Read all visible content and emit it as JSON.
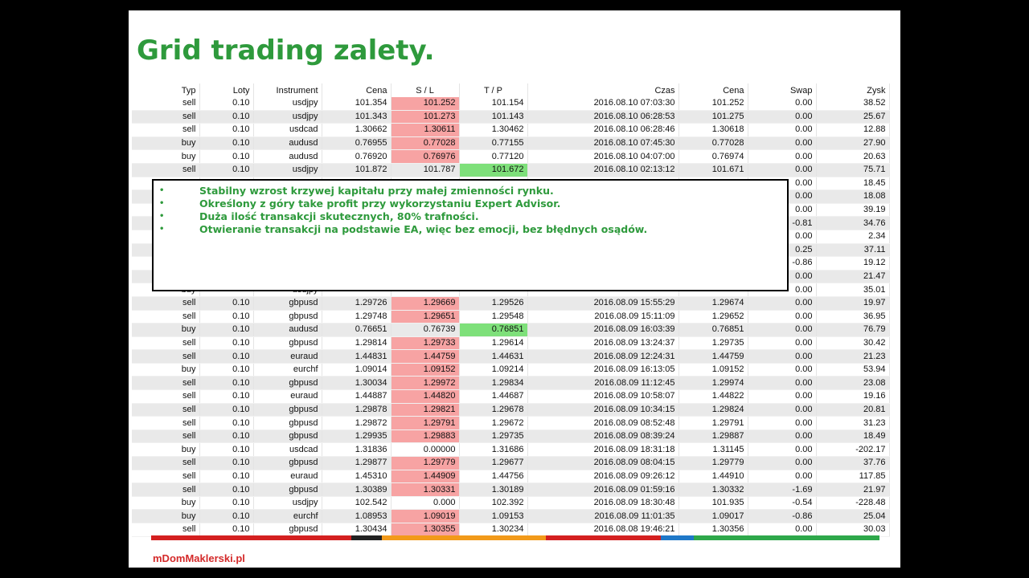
{
  "title": "Grid trading zalety.",
  "columns": [
    "Typ",
    "Loty",
    "Instrument",
    "Cena",
    "S / L",
    "T / P",
    "Czas",
    "Cena",
    "Swap",
    "Zysk"
  ],
  "rows": [
    {
      "cells": [
        "sell",
        "0.10",
        "usdjpy",
        "101.354",
        "101.252",
        "101.154",
        "2016.08.10 07:03:30",
        "101.252",
        "0.00",
        "38.52"
      ],
      "sl_highlight": true,
      "tp_highlight": false
    },
    {
      "cells": [
        "sell",
        "0.10",
        "usdjpy",
        "101.343",
        "101.273",
        "101.143",
        "2016.08.10 06:28:53",
        "101.275",
        "0.00",
        "25.67"
      ],
      "sl_highlight": true,
      "tp_highlight": false
    },
    {
      "cells": [
        "sell",
        "0.10",
        "usdcad",
        "1.30662",
        "1.30611",
        "1.30462",
        "2016.08.10 06:28:46",
        "1.30618",
        "0.00",
        "12.88"
      ],
      "sl_highlight": true,
      "tp_highlight": false
    },
    {
      "cells": [
        "buy",
        "0.10",
        "audusd",
        "0.76955",
        "0.77028",
        "0.77155",
        "2016.08.10 07:45:30",
        "0.77028",
        "0.00",
        "27.90"
      ],
      "sl_highlight": true,
      "tp_highlight": false
    },
    {
      "cells": [
        "buy",
        "0.10",
        "audusd",
        "0.76920",
        "0.76976",
        "0.77120",
        "2016.08.10 04:07:00",
        "0.76974",
        "0.00",
        "20.63"
      ],
      "sl_highlight": true,
      "tp_highlight": false
    },
    {
      "cells": [
        "sell",
        "0.10",
        "usdjpy",
        "101.872",
        "101.787",
        "101.672",
        "2016.08.10 02:13:12",
        "101.671",
        "0.00",
        "75.71"
      ],
      "sl_highlight": false,
      "tp_highlight": true
    },
    {
      "cells": [
        "",
        "",
        "",
        "",
        "",
        "",
        "",
        "",
        "0.00",
        "18.45"
      ],
      "sl_highlight": false,
      "tp_highlight": false
    },
    {
      "cells": [
        "",
        "",
        "",
        "",
        "",
        "",
        "",
        "",
        "0.00",
        "18.08"
      ],
      "sl_highlight": false,
      "tp_highlight": false
    },
    {
      "cells": [
        "",
        "",
        "",
        "",
        "",
        "",
        "",
        "",
        "0.00",
        "39.19"
      ],
      "sl_highlight": false,
      "tp_highlight": false
    },
    {
      "cells": [
        "",
        "",
        "",
        "",
        "",
        "",
        "",
        "",
        "-0.81",
        "34.76"
      ],
      "sl_highlight": false,
      "tp_highlight": false
    },
    {
      "cells": [
        "",
        "",
        "",
        "",
        "",
        "",
        "",
        "",
        "0.00",
        "2.34"
      ],
      "sl_highlight": false,
      "tp_highlight": false
    },
    {
      "cells": [
        "",
        "",
        "",
        "",
        "",
        "",
        "",
        "",
        "0.25",
        "37.11"
      ],
      "sl_highlight": false,
      "tp_highlight": false
    },
    {
      "cells": [
        "",
        "",
        "",
        "",
        "",
        "",
        "",
        "",
        "-0.86",
        "19.12"
      ],
      "sl_highlight": false,
      "tp_highlight": false
    },
    {
      "cells": [
        "",
        "",
        "",
        "",
        "",
        "",
        "",
        "",
        "0.00",
        "21.47"
      ],
      "sl_highlight": false,
      "tp_highlight": false
    },
    {
      "cells": [
        "buy",
        "",
        "usdjpy",
        "",
        "",
        "",
        "",
        "",
        "0.00",
        "35.01"
      ],
      "sl_highlight": false,
      "tp_highlight": false
    },
    {
      "cells": [
        "sell",
        "0.10",
        "gbpusd",
        "1.29726",
        "1.29669",
        "1.29526",
        "2016.08.09 15:55:29",
        "1.29674",
        "0.00",
        "19.97"
      ],
      "sl_highlight": true,
      "tp_highlight": false
    },
    {
      "cells": [
        "sell",
        "0.10",
        "gbpusd",
        "1.29748",
        "1.29651",
        "1.29548",
        "2016.08.09 15:11:09",
        "1.29652",
        "0.00",
        "36.95"
      ],
      "sl_highlight": true,
      "tp_highlight": false
    },
    {
      "cells": [
        "buy",
        "0.10",
        "audusd",
        "0.76651",
        "0.76739",
        "0.76851",
        "2016.08.09 16:03:39",
        "0.76851",
        "0.00",
        "76.79"
      ],
      "sl_highlight": false,
      "tp_highlight": true
    },
    {
      "cells": [
        "sell",
        "0.10",
        "gbpusd",
        "1.29814",
        "1.29733",
        "1.29614",
        "2016.08.09 13:24:37",
        "1.29735",
        "0.00",
        "30.42"
      ],
      "sl_highlight": true,
      "tp_highlight": false
    },
    {
      "cells": [
        "sell",
        "0.10",
        "euraud",
        "1.44831",
        "1.44759",
        "1.44631",
        "2016.08.09 12:24:31",
        "1.44759",
        "0.00",
        "21.23"
      ],
      "sl_highlight": true,
      "tp_highlight": false
    },
    {
      "cells": [
        "buy",
        "0.10",
        "eurchf",
        "1.09014",
        "1.09152",
        "1.09214",
        "2016.08.09 16:13:05",
        "1.09152",
        "0.00",
        "53.94"
      ],
      "sl_highlight": true,
      "tp_highlight": false
    },
    {
      "cells": [
        "sell",
        "0.10",
        "gbpusd",
        "1.30034",
        "1.29972",
        "1.29834",
        "2016.08.09 11:12:45",
        "1.29974",
        "0.00",
        "23.08"
      ],
      "sl_highlight": true,
      "tp_highlight": false
    },
    {
      "cells": [
        "sell",
        "0.10",
        "euraud",
        "1.44887",
        "1.44820",
        "1.44687",
        "2016.08.09 10:58:07",
        "1.44822",
        "0.00",
        "19.16"
      ],
      "sl_highlight": true,
      "tp_highlight": false
    },
    {
      "cells": [
        "sell",
        "0.10",
        "gbpusd",
        "1.29878",
        "1.29821",
        "1.29678",
        "2016.08.09 10:34:15",
        "1.29824",
        "0.00",
        "20.81"
      ],
      "sl_highlight": true,
      "tp_highlight": false
    },
    {
      "cells": [
        "sell",
        "0.10",
        "gbpusd",
        "1.29872",
        "1.29791",
        "1.29672",
        "2016.08.09 08:52:48",
        "1.29791",
        "0.00",
        "31.23"
      ],
      "sl_highlight": true,
      "tp_highlight": false
    },
    {
      "cells": [
        "sell",
        "0.10",
        "gbpusd",
        "1.29935",
        "1.29883",
        "1.29735",
        "2016.08.09 08:39:24",
        "1.29887",
        "0.00",
        "18.49"
      ],
      "sl_highlight": true,
      "tp_highlight": false
    },
    {
      "cells": [
        "buy",
        "0.10",
        "usdcad",
        "1.31836",
        "0.00000",
        "1.31686",
        "2016.08.09 18:31:18",
        "1.31145",
        "0.00",
        "-202.17"
      ],
      "sl_highlight": false,
      "tp_highlight": false
    },
    {
      "cells": [
        "sell",
        "0.10",
        "gbpusd",
        "1.29877",
        "1.29779",
        "1.29677",
        "2016.08.09 08:04:15",
        "1.29779",
        "0.00",
        "37.76"
      ],
      "sl_highlight": true,
      "tp_highlight": false
    },
    {
      "cells": [
        "sell",
        "0.10",
        "euraud",
        "1.45310",
        "1.44909",
        "1.44756",
        "2016.08.09 09:26:12",
        "1.44910",
        "0.00",
        "117.85"
      ],
      "sl_highlight": true,
      "tp_highlight": false
    },
    {
      "cells": [
        "sell",
        "0.10",
        "gbpusd",
        "1.30389",
        "1.30331",
        "1.30189",
        "2016.08.09 01:59:16",
        "1.30332",
        "-1.69",
        "21.97"
      ],
      "sl_highlight": true,
      "tp_highlight": false
    },
    {
      "cells": [
        "buy",
        "0.10",
        "usdjpy",
        "102.542",
        "0.000",
        "102.392",
        "2016.08.09 18:30:48",
        "101.935",
        "-0.54",
        "-228.48"
      ],
      "sl_highlight": false,
      "tp_highlight": false
    },
    {
      "cells": [
        "buy",
        "0.10",
        "eurchf",
        "1.08953",
        "1.09019",
        "1.09153",
        "2016.08.09 11:01:35",
        "1.09017",
        "-0.86",
        "25.04"
      ],
      "sl_highlight": true,
      "tp_highlight": false
    },
    {
      "cells": [
        "sell",
        "0.10",
        "gbpusd",
        "1.30434",
        "1.30355",
        "1.30234",
        "2016.08.08 19:46:21",
        "1.30356",
        "0.00",
        "30.03"
      ],
      "sl_highlight": true,
      "tp_highlight": false
    }
  ],
  "callout": {
    "bullet": "•",
    "items": [
      "Stabilny wzrost krzywej kapitału przy małej zmienności rynku.",
      "Określony z góry take profit przy wykorzystaniu Expert Advisor.",
      "Duża ilość transakcji skutecznych, 80% trafności.",
      "Otwieranie transakcji na podstawie EA, więc bez emocji, bez błędnych osądów."
    ]
  },
  "colors": {
    "title": "#2e9a3c",
    "sl_highlight": "#f7a3a3",
    "tp_highlight": "#7ee07a",
    "row_alt": "#e9e9e9",
    "brand": "#d42a2a"
  },
  "stripe_segments": [
    {
      "color": "#d42020",
      "share": 0.275
    },
    {
      "color": "#222222",
      "share": 0.042
    },
    {
      "color": "#f29a1a",
      "share": 0.225
    },
    {
      "color": "#d42020",
      "share": 0.158
    },
    {
      "color": "#1f78c8",
      "share": 0.045
    },
    {
      "color": "#2ea84a",
      "share": 0.255
    }
  ],
  "brand": "mDomMaklerski.pl"
}
